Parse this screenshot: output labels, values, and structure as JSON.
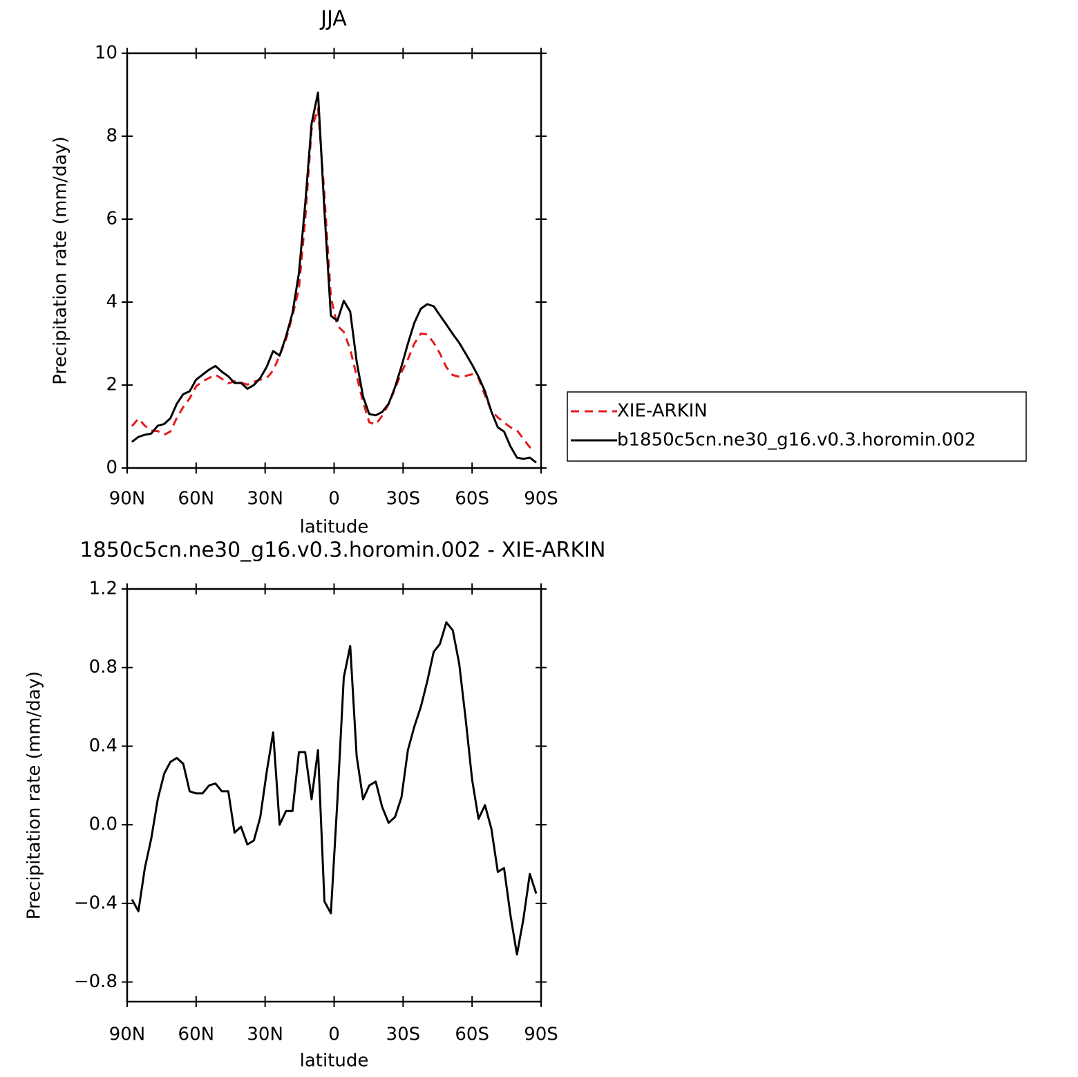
{
  "chart_data": [
    {
      "type": "line",
      "title": "JJA",
      "xlabel": "latitude",
      "ylabel": "Precipitation rate (mm/day)",
      "x": [
        87.9,
        85.1,
        82.3,
        79.5,
        76.7,
        73.9,
        71.2,
        68.4,
        65.6,
        62.8,
        60.0,
        57.2,
        54.4,
        51.6,
        48.8,
        46.0,
        43.3,
        40.5,
        37.7,
        34.9,
        32.1,
        29.3,
        26.5,
        23.7,
        20.9,
        18.1,
        15.3,
        12.6,
        9.8,
        7.0,
        4.2,
        1.4,
        -1.4,
        -4.2,
        -7.0,
        -9.8,
        -12.6,
        -15.3,
        -18.1,
        -20.9,
        -23.7,
        -26.5,
        -29.3,
        -32.1,
        -34.9,
        -37.7,
        -40.5,
        -43.3,
        -46.0,
        -48.8,
        -51.6,
        -54.4,
        -57.2,
        -60.0,
        -62.8,
        -65.6,
        -68.4,
        -71.2,
        -73.9,
        -76.7,
        -79.5,
        -82.3,
        -85.1,
        -87.9
      ],
      "series": [
        {
          "name": "XIE-ARKIN",
          "color": "#e41a1c",
          "linestyle": "dashed",
          "values": [
            1.01,
            1.19,
            1.02,
            0.9,
            0.89,
            0.8,
            0.88,
            1.21,
            1.47,
            1.68,
            1.97,
            2.09,
            2.17,
            2.25,
            2.15,
            2.04,
            2.09,
            2.06,
            2.01,
            2.08,
            2.13,
            2.17,
            2.35,
            2.71,
            3.1,
            3.67,
            4.33,
            5.98,
            8.17,
            8.67,
            6.59,
            4.12,
            3.43,
            3.28,
            2.86,
            2.22,
            1.59,
            1.1,
            1.05,
            1.26,
            1.54,
            1.91,
            2.31,
            2.62,
            3.0,
            3.24,
            3.22,
            3.02,
            2.76,
            2.43,
            2.24,
            2.2,
            2.22,
            2.26,
            2.17,
            1.75,
            1.38,
            1.22,
            1.1,
            0.98,
            0.91,
            0.7,
            0.5,
            0.48
          ]
        },
        {
          "name": "b1850c5cn.ne30_g16.v0.3.horomin.002",
          "color": "#000000",
          "linestyle": "solid",
          "values": [
            0.63,
            0.75,
            0.8,
            0.83,
            1.02,
            1.06,
            1.2,
            1.55,
            1.78,
            1.85,
            2.13,
            2.25,
            2.37,
            2.46,
            2.32,
            2.21,
            2.05,
            2.05,
            1.91,
            2.0,
            2.17,
            2.44,
            2.82,
            2.71,
            3.17,
            3.74,
            4.7,
            6.35,
            8.3,
            9.05,
            6.2,
            3.67,
            3.55,
            4.03,
            3.77,
            2.57,
            1.72,
            1.3,
            1.27,
            1.35,
            1.55,
            1.95,
            2.45,
            3.0,
            3.5,
            3.84,
            3.95,
            3.9,
            3.68,
            3.46,
            3.23,
            3.02,
            2.76,
            2.49,
            2.2,
            1.85,
            1.36,
            0.98,
            0.88,
            0.52,
            0.25,
            0.22,
            0.25,
            0.13
          ]
        }
      ],
      "xlim": [
        90,
        -90
      ],
      "xticks": [
        {
          "value": 90,
          "label": "90N"
        },
        {
          "value": 60,
          "label": "60N"
        },
        {
          "value": 30,
          "label": "30N"
        },
        0,
        {
          "value": -30,
          "label": "30S"
        },
        {
          "value": -60,
          "label": "60S"
        },
        {
          "value": -90,
          "label": "90S"
        }
      ],
      "ylim": [
        0,
        10
      ],
      "yticks": [
        0,
        2,
        4,
        6,
        8,
        10
      ],
      "legend": "right"
    },
    {
      "type": "line",
      "title": "1850c5cn.ne30_g16.v0.3.horomin.002 - XIE-ARKIN",
      "xlabel": "latitude",
      "ylabel": "Precipitation rate (mm/day)",
      "x": [
        87.9,
        85.1,
        82.3,
        79.5,
        76.7,
        73.9,
        71.2,
        68.4,
        65.6,
        62.8,
        60.0,
        57.2,
        54.4,
        51.6,
        48.8,
        46.0,
        43.3,
        40.5,
        37.7,
        34.9,
        32.1,
        29.3,
        26.5,
        23.7,
        20.9,
        18.1,
        15.3,
        12.6,
        9.8,
        7.0,
        4.2,
        1.4,
        -1.4,
        -4.2,
        -7.0,
        -9.8,
        -12.6,
        -15.3,
        -18.1,
        -20.9,
        -23.7,
        -26.5,
        -29.3,
        -32.1,
        -34.9,
        -37.7,
        -40.5,
        -43.3,
        -46.0,
        -48.8,
        -51.6,
        -54.4,
        -57.2,
        -60.0,
        -62.8,
        -65.6,
        -68.4,
        -71.2,
        -73.9,
        -76.7,
        -79.5,
        -82.3,
        -85.1,
        -87.9
      ],
      "series": [
        {
          "color": "#000000",
          "linestyle": "solid",
          "values": [
            -0.38,
            -0.44,
            -0.22,
            -0.07,
            0.13,
            0.26,
            0.32,
            0.34,
            0.31,
            0.17,
            0.16,
            0.16,
            0.2,
            0.21,
            0.17,
            0.17,
            -0.04,
            -0.01,
            -0.1,
            -0.08,
            0.04,
            0.27,
            0.47,
            0.0,
            0.07,
            0.07,
            0.37,
            0.37,
            0.13,
            0.38,
            -0.39,
            -0.45,
            0.12,
            0.75,
            0.91,
            0.35,
            0.13,
            0.2,
            0.22,
            0.09,
            0.01,
            0.04,
            0.14,
            0.38,
            0.5,
            0.6,
            0.73,
            0.88,
            0.92,
            1.03,
            0.99,
            0.82,
            0.54,
            0.23,
            0.03,
            0.1,
            -0.02,
            -0.24,
            -0.22,
            -0.46,
            -0.66,
            -0.48,
            -0.25,
            -0.35
          ]
        }
      ],
      "xlim": [
        90,
        -90
      ],
      "xticks": [
        {
          "value": 90,
          "label": "90N"
        },
        {
          "value": 60,
          "label": "60N"
        },
        {
          "value": 30,
          "label": "30N"
        },
        0,
        {
          "value": -30,
          "label": "30S"
        },
        {
          "value": -60,
          "label": "60S"
        },
        {
          "value": -90,
          "label": "90S"
        }
      ],
      "ylim": [
        -0.9,
        1.2
      ],
      "yticks": [
        {
          "value": -0.8,
          "label": "−0.8"
        },
        {
          "value": -0.4,
          "label": "−0.4"
        },
        {
          "value": 0,
          "label": "0.0"
        },
        0.4,
        0.8,
        1.2
      ]
    }
  ]
}
